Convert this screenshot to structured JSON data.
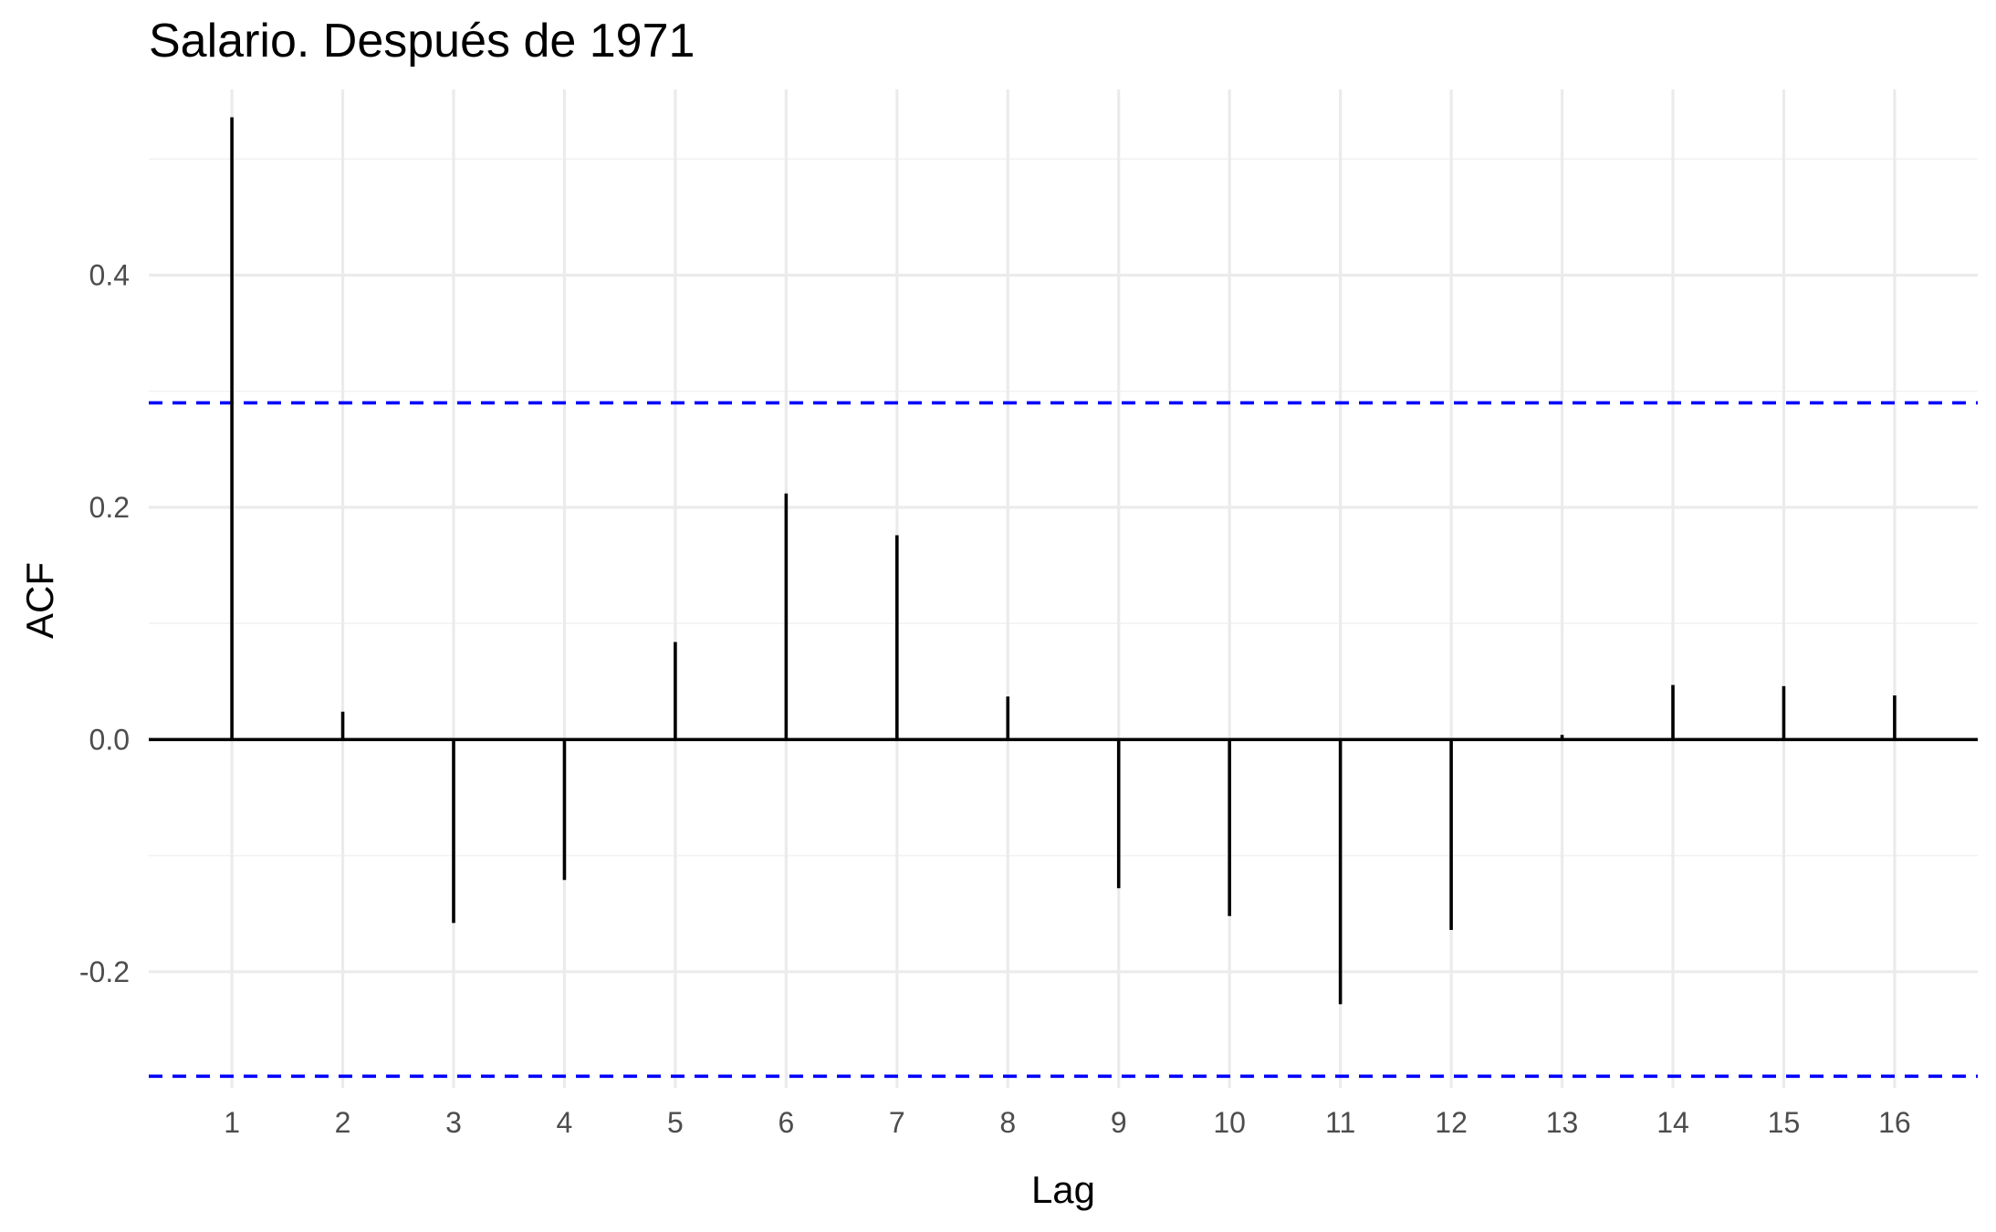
{
  "chart_data": {
    "type": "bar",
    "title": "Salario. Después de 1971",
    "xlabel": "Lag",
    "ylabel": "ACF",
    "x": [
      1,
      2,
      3,
      4,
      5,
      6,
      7,
      8,
      9,
      10,
      11,
      12,
      13,
      14,
      15,
      16
    ],
    "values": [
      0.536,
      0.024,
      -0.158,
      -0.121,
      0.084,
      0.212,
      0.176,
      0.037,
      -0.128,
      -0.152,
      -0.228,
      -0.164,
      0.004,
      0.047,
      0.046,
      0.038
    ],
    "x_ticks": [
      "1",
      "2",
      "3",
      "4",
      "5",
      "6",
      "7",
      "8",
      "9",
      "10",
      "11",
      "12",
      "13",
      "14",
      "15",
      "16"
    ],
    "y_ticks": [
      -0.2,
      0.0,
      0.2,
      0.4
    ],
    "y_tick_labels": [
      "-0.2",
      "0.0",
      "0.2",
      "0.4"
    ],
    "xlim": [
      0.25,
      16.75
    ],
    "ylim": [
      -0.3,
      0.56
    ],
    "ci_bounds": [
      0.29,
      -0.29
    ],
    "colors": {
      "bars": "#000000",
      "ci": "#0000ff",
      "grid": "#ebebeb",
      "text": "#4d4d4d"
    },
    "grid": true,
    "legend": "none"
  }
}
